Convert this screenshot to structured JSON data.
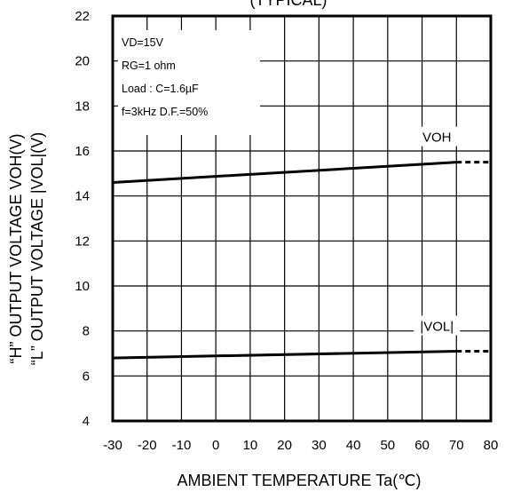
{
  "chart_data": {
    "type": "line",
    "title": "(TYPICAL)",
    "xlabel": "AMBIENT  TEMPERATURE  Ta(℃)",
    "ylabel_lines": [
      "“H” OUTPUT  VOLTAGE   VOH(V)",
      "“L” OUTPUT  VOLTAGE  |VOL|(V)"
    ],
    "xlim": [
      -30,
      80
    ],
    "ylim": [
      4,
      22
    ],
    "xticks": [
      -30,
      -20,
      -10,
      0,
      10,
      20,
      30,
      40,
      50,
      60,
      70,
      80
    ],
    "yticks": [
      4,
      6,
      8,
      10,
      12,
      14,
      16,
      18,
      20,
      22
    ],
    "grid": true,
    "conditions": [
      "VD=15V",
      "RG=1 ohm",
      "Load : C=1.6µF",
      "f=3kHz D.F.=50%"
    ],
    "series": [
      {
        "name": "VOH",
        "x": [
          -30,
          70
        ],
        "y": [
          14.6,
          15.5
        ],
        "dotted_to": [
          80,
          15.5
        ]
      },
      {
        "name": "|VOL|",
        "x": [
          -30,
          70
        ],
        "y": [
          6.8,
          7.1
        ],
        "dotted_to": [
          80,
          7.1
        ]
      }
    ]
  }
}
